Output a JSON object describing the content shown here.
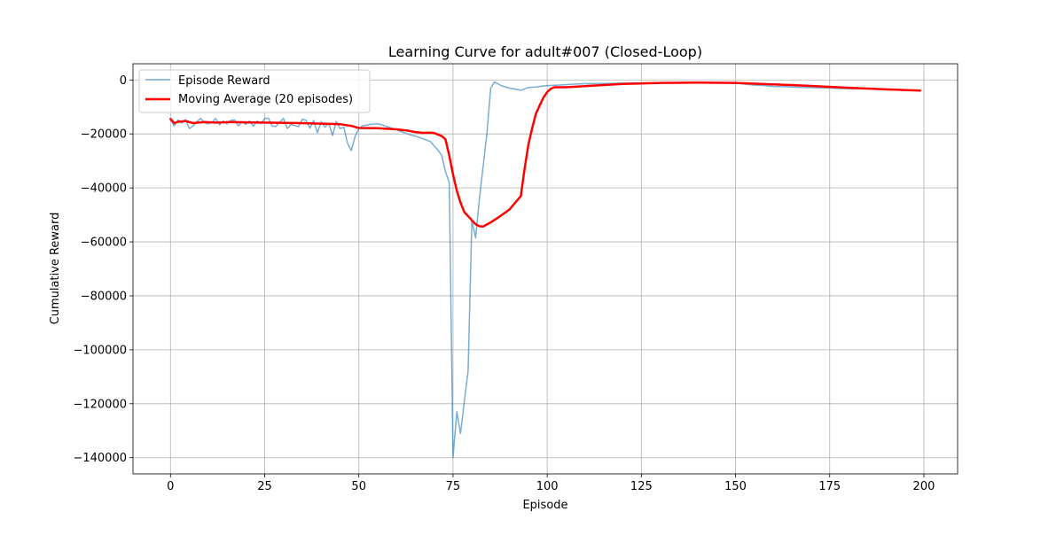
{
  "chart_data": {
    "type": "line",
    "title": "Learning Curve for adult#007 (Closed-Loop)",
    "xlabel": "Episode",
    "ylabel": "Cumulative Reward",
    "xlim": [
      -9.95,
      208.95
    ],
    "ylim": [
      -146000,
      6000
    ],
    "xticks": [
      0,
      25,
      50,
      75,
      100,
      125,
      150,
      175,
      200
    ],
    "yticks": [
      0,
      -20000,
      -40000,
      -60000,
      -80000,
      -100000,
      -120000,
      -140000
    ],
    "xtick_labels": [
      "0",
      "25",
      "50",
      "75",
      "100",
      "125",
      "150",
      "175",
      "200"
    ],
    "ytick_labels": [
      "0",
      "−20000",
      "−40000",
      "−60000",
      "−80000",
      "−100000",
      "−120000",
      "−140000"
    ],
    "grid": true,
    "legend_position": "upper-left",
    "series": [
      {
        "name": "Episode Reward",
        "color": "#1f77b4",
        "opacity": 0.6,
        "linewidth": 1.5,
        "x": [
          0,
          1,
          2,
          3,
          4,
          5,
          6,
          7,
          8,
          9,
          10,
          11,
          12,
          13,
          14,
          15,
          16,
          17,
          18,
          19,
          20,
          21,
          22,
          23,
          24,
          25,
          26,
          27,
          28,
          29,
          30,
          31,
          32,
          33,
          34,
          35,
          36,
          37,
          38,
          39,
          40,
          41,
          42,
          43,
          44,
          45,
          46,
          47,
          48,
          49,
          50,
          51,
          52,
          53,
          55,
          58,
          61,
          64,
          65,
          67,
          69,
          71,
          72,
          73,
          74,
          75,
          76,
          77,
          78,
          79,
          80,
          81,
          82,
          83,
          84,
          85,
          86,
          88,
          90,
          93,
          95,
          97,
          99,
          101,
          103,
          106,
          110,
          115,
          120,
          130,
          140,
          150,
          155,
          157,
          160,
          163,
          168,
          175,
          180,
          183,
          187,
          190,
          195,
          199
        ],
        "y": [
          -14500,
          -17000,
          -14800,
          -16000,
          -14700,
          -18000,
          -17000,
          -15500,
          -14300,
          -15800,
          -16300,
          -15700,
          -14300,
          -16600,
          -15200,
          -16300,
          -15000,
          -14800,
          -17000,
          -15500,
          -16500,
          -15200,
          -17100,
          -15200,
          -16200,
          -14300,
          -14200,
          -17100,
          -17200,
          -15600,
          -14300,
          -18000,
          -16500,
          -16900,
          -17300,
          -14500,
          -15000,
          -17800,
          -15000,
          -19600,
          -15500,
          -17500,
          -16000,
          -20600,
          -15400,
          -18000,
          -17500,
          -23500,
          -26200,
          -21000,
          -18000,
          -17000,
          -16800,
          -16500,
          -16200,
          -17500,
          -19000,
          -20500,
          -20800,
          -21800,
          -22800,
          -26000,
          -28000,
          -34000,
          -38000,
          -140000,
          -123000,
          -131000,
          -119000,
          -108000,
          -52000,
          -58500,
          -44000,
          -32000,
          -20000,
          -3000,
          -800,
          -2200,
          -3000,
          -3800,
          -2800,
          -2600,
          -2200,
          -2000,
          -1900,
          -1600,
          -1400,
          -1300,
          -1200,
          -1100,
          -1100,
          -1200,
          -1900,
          -2000,
          -2400,
          -2500,
          -2800,
          -3000,
          -3300,
          -3100,
          -3400,
          -3500,
          -3700,
          -3800
        ]
      },
      {
        "name": "Moving Average (20 episodes)",
        "color": "#ff0000",
        "opacity": 1,
        "linewidth": 2.5,
        "x": [
          0,
          1,
          2,
          4,
          6,
          9,
          12,
          16,
          20,
          25,
          30,
          35,
          40,
          45,
          48,
          50,
          55,
          60,
          63,
          65,
          67,
          69,
          70,
          71,
          72,
          73,
          74,
          75,
          76,
          77,
          78,
          80,
          81,
          82,
          83,
          85,
          87,
          90,
          93,
          94,
          95,
          96,
          97,
          98,
          99,
          100,
          101,
          102,
          105,
          110,
          120,
          130,
          140,
          150,
          160,
          170,
          180,
          190,
          199
        ],
        "y": [
          -14500,
          -16000,
          -15500,
          -15200,
          -16000,
          -15600,
          -15800,
          -15600,
          -15700,
          -15800,
          -15900,
          -16000,
          -16200,
          -16400,
          -17000,
          -17800,
          -17900,
          -18300,
          -18800,
          -19300,
          -19600,
          -19500,
          -19700,
          -20200,
          -20800,
          -22000,
          -28000,
          -35000,
          -41000,
          -45500,
          -49000,
          -52000,
          -53500,
          -54200,
          -54300,
          -52800,
          -51000,
          -48000,
          -43000,
          -33000,
          -24000,
          -18000,
          -12500,
          -9500,
          -6500,
          -4500,
          -3200,
          -2700,
          -2700,
          -2300,
          -1500,
          -1100,
          -1000,
          -1100,
          -1600,
          -2200,
          -2900,
          -3500,
          -3900
        ]
      }
    ]
  }
}
